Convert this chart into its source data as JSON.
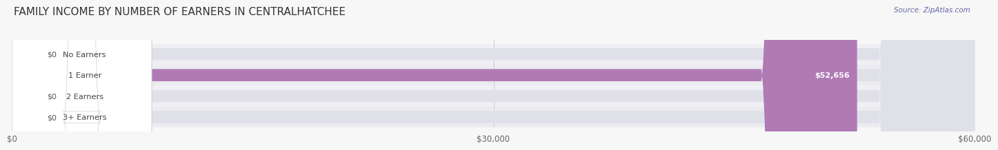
{
  "title": "FAMILY INCOME BY NUMBER OF EARNERS IN CENTRALHATCHEE",
  "source": "Source: ZipAtlas.com",
  "categories": [
    "No Earners",
    "1 Earner",
    "2 Earners",
    "3+ Earners"
  ],
  "values": [
    0,
    52656,
    0,
    0
  ],
  "bar_colors": [
    "#a8bcd8",
    "#b07ab5",
    "#5ececa",
    "#a8b8e0"
  ],
  "bar_bg_color": "#e8e8e8",
  "xlim": [
    0,
    60000
  ],
  "xtick_labels": [
    "$0",
    "$30,000",
    "$60,000"
  ],
  "value_labels": [
    "$0",
    "$52,656",
    "$0",
    "$0"
  ],
  "background_color": "#f7f7f7",
  "title_fontsize": 11,
  "bar_height": 0.58,
  "row_colors": [
    "#f0f0f0",
    "#e8e8e8"
  ]
}
